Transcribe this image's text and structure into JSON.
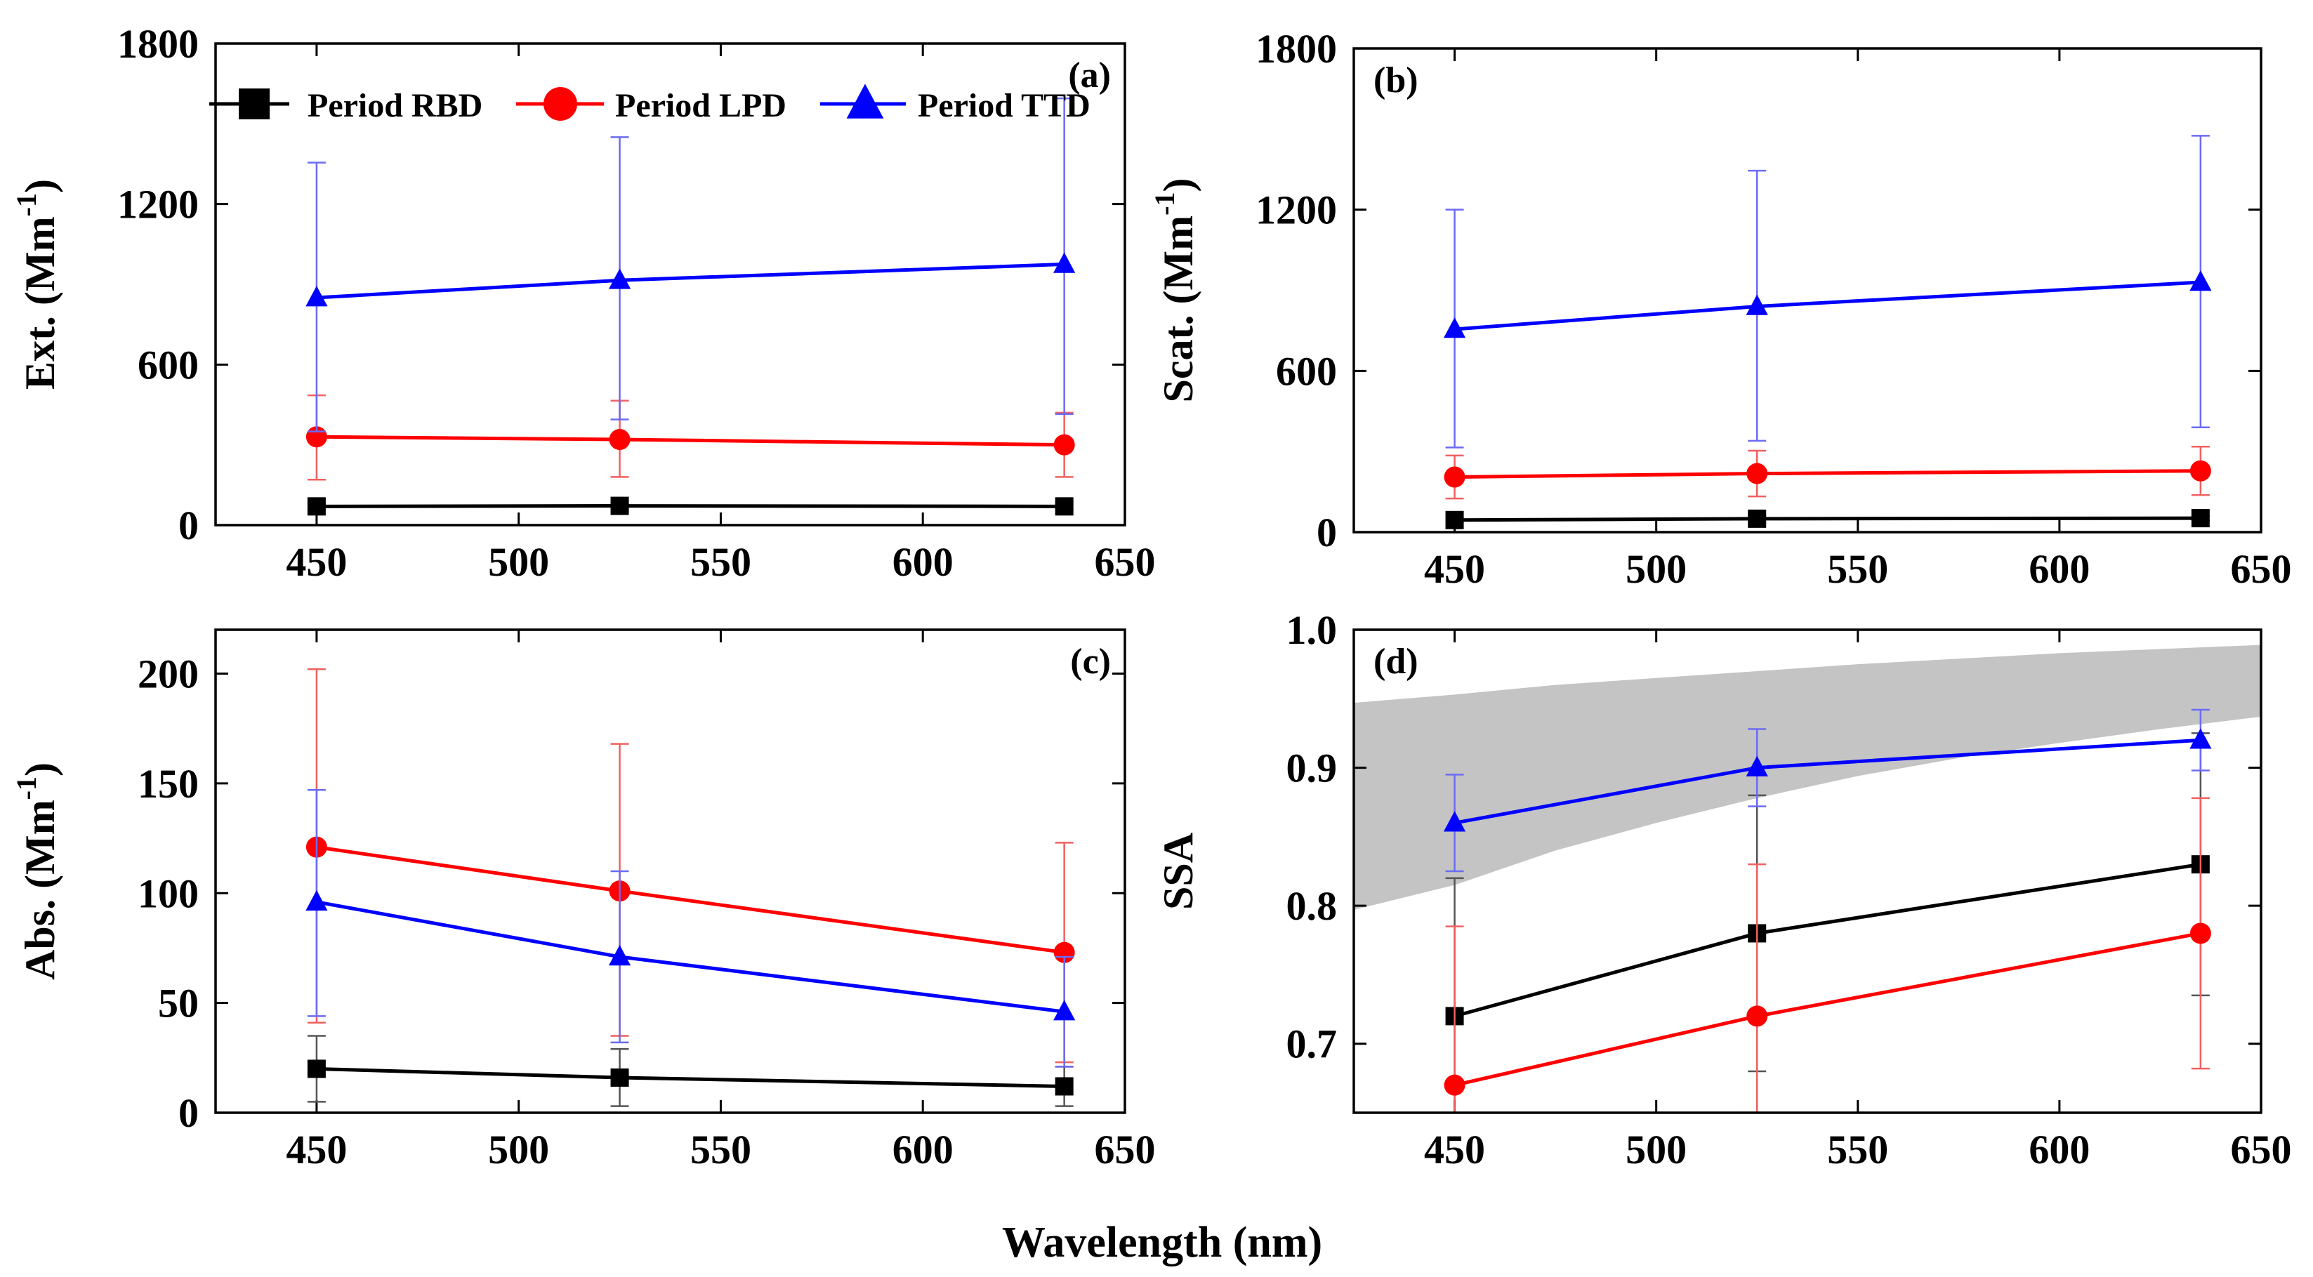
{
  "figure": {
    "xlabel": "Wavelength (nm)"
  },
  "legend": {
    "placement": "top",
    "entries": [
      {
        "name": "Period RBD",
        "color": "#000000",
        "marker": "square"
      },
      {
        "name": "Period LPD",
        "color": "#ff0000",
        "marker": "circle"
      },
      {
        "name": "Period TTD",
        "color": "#0000ff",
        "marker": "triangle"
      }
    ]
  },
  "chart_data": [
    {
      "type": "line",
      "panel_label": "(a)",
      "ylabel_main": "Ext. (Mm",
      "ylabel_sup": "-1",
      "ylabel_close": ")",
      "xlim": [
        425,
        650
      ],
      "ylim": [
        0,
        1800
      ],
      "xticks": [
        450,
        500,
        550,
        600,
        650
      ],
      "yticks": [
        "0",
        "600",
        "1200",
        "1800"
      ],
      "yticks_values": [
        0,
        600,
        1200,
        1800
      ],
      "x": [
        450,
        525,
        635
      ],
      "series": [
        {
          "name": "Period RBD",
          "color": "#000000",
          "marker": "square",
          "values": [
            70,
            72,
            70
          ],
          "err_low": [
            10,
            12,
            10
          ],
          "err_high": [
            10,
            12,
            10
          ]
        },
        {
          "name": "Period LPD",
          "color": "#ff0000",
          "marker": "circle",
          "values": [
            330,
            320,
            300
          ],
          "err_low": [
            160,
            140,
            120
          ],
          "err_high": [
            155,
            145,
            120
          ]
        },
        {
          "name": "Period TTD",
          "color": "#0000ff",
          "marker": "triangle",
          "values": [
            850,
            915,
            975
          ],
          "err_low": [
            500,
            520,
            560
          ],
          "err_high": [
            505,
            535,
            620
          ]
        }
      ]
    },
    {
      "type": "line",
      "panel_label": "(b)",
      "ylabel_main": "Scat. (Mm",
      "ylabel_sup": "-1",
      "ylabel_close": ")",
      "xlim": [
        425,
        650
      ],
      "ylim": [
        0,
        1800
      ],
      "xticks": [
        450,
        500,
        550,
        600,
        650
      ],
      "yticks": [
        "0",
        "600",
        "1200",
        "1800"
      ],
      "yticks_values": [
        0,
        600,
        1200,
        1800
      ],
      "x": [
        450,
        525,
        635
      ],
      "series": [
        {
          "name": "Period RBD",
          "color": "#000000",
          "marker": "square",
          "values": [
            45,
            50,
            52
          ],
          "err_low": [
            8,
            8,
            8
          ],
          "err_high": [
            8,
            8,
            8
          ]
        },
        {
          "name": "Period LPD",
          "color": "#ff0000",
          "marker": "circle",
          "values": [
            205,
            218,
            228
          ],
          "err_low": [
            80,
            85,
            90
          ],
          "err_high": [
            80,
            85,
            90
          ]
        },
        {
          "name": "Period TTD",
          "color": "#0000ff",
          "marker": "triangle",
          "values": [
            755,
            840,
            930
          ],
          "err_low": [
            440,
            500,
            540
          ],
          "err_high": [
            445,
            505,
            545
          ]
        }
      ]
    },
    {
      "type": "line",
      "panel_label": "(c)",
      "ylabel_main": "Abs. (Mm",
      "ylabel_sup": "-1",
      "ylabel_close": ")",
      "xlim": [
        425,
        650
      ],
      "ylim": [
        0,
        220
      ],
      "xticks": [
        450,
        500,
        550,
        600,
        650
      ],
      "yticks": [
        "0",
        "50",
        "100",
        "150",
        "200"
      ],
      "yticks_values": [
        0,
        50,
        100,
        150,
        200
      ],
      "x": [
        450,
        525,
        635
      ],
      "series": [
        {
          "name": "Period RBD",
          "color": "#000000",
          "marker": "square",
          "values": [
            20,
            16,
            12
          ],
          "err_low": [
            15,
            13,
            9
          ],
          "err_high": [
            15,
            13,
            9
          ]
        },
        {
          "name": "Period LPD",
          "color": "#ff0000",
          "marker": "circle",
          "values": [
            121,
            101,
            73
          ],
          "err_low": [
            80,
            66,
            50
          ],
          "err_high": [
            81,
            67,
            50
          ]
        },
        {
          "name": "Period TTD",
          "color": "#0000ff",
          "marker": "triangle",
          "values": [
            96,
            71,
            46
          ],
          "err_low": [
            52,
            39,
            25
          ],
          "err_high": [
            51,
            39,
            25
          ]
        }
      ]
    },
    {
      "type": "line",
      "panel_label": "(d)",
      "ylabel_main": "SSA",
      "ylabel_sup": "",
      "ylabel_close": "",
      "xlim": [
        425,
        650
      ],
      "ylim": [
        0.65,
        1.0
      ],
      "xticks": [
        450,
        500,
        550,
        600,
        650
      ],
      "yticks": [
        "0.7",
        "0.8",
        "0.9",
        "1.0"
      ],
      "yticks_values": [
        0.7,
        0.8,
        0.9,
        1.0
      ],
      "x": [
        450,
        525,
        635
      ],
      "band": {
        "color": "#c4c4c4",
        "x": [
          425,
          450,
          475,
          500,
          525,
          550,
          575,
          600,
          625,
          650
        ],
        "upper": [
          0.947,
          0.953,
          0.96,
          0.965,
          0.97,
          0.975,
          0.979,
          0.983,
          0.986,
          0.989
        ],
        "lower": [
          0.797,
          0.815,
          0.84,
          0.86,
          0.878,
          0.894,
          0.907,
          0.918,
          0.928,
          0.937
        ]
      },
      "series": [
        {
          "name": "Period RBD",
          "color": "#000000",
          "marker": "square",
          "values": [
            0.72,
            0.78,
            0.83
          ],
          "err_low": [
            0.1,
            0.1,
            0.095
          ],
          "err_high": [
            0.1,
            0.1,
            0.095
          ]
        },
        {
          "name": "Period LPD",
          "color": "#ff0000",
          "marker": "circle",
          "values": [
            0.67,
            0.72,
            0.78
          ],
          "err_low": [
            0.115,
            0.11,
            0.098
          ],
          "err_high": [
            0.115,
            0.11,
            0.098
          ]
        },
        {
          "name": "Period TTD",
          "color": "#0000ff",
          "marker": "triangle",
          "values": [
            0.86,
            0.9,
            0.92
          ],
          "err_low": [
            0.035,
            0.028,
            0.022
          ],
          "err_high": [
            0.035,
            0.028,
            0.022
          ]
        }
      ]
    }
  ]
}
